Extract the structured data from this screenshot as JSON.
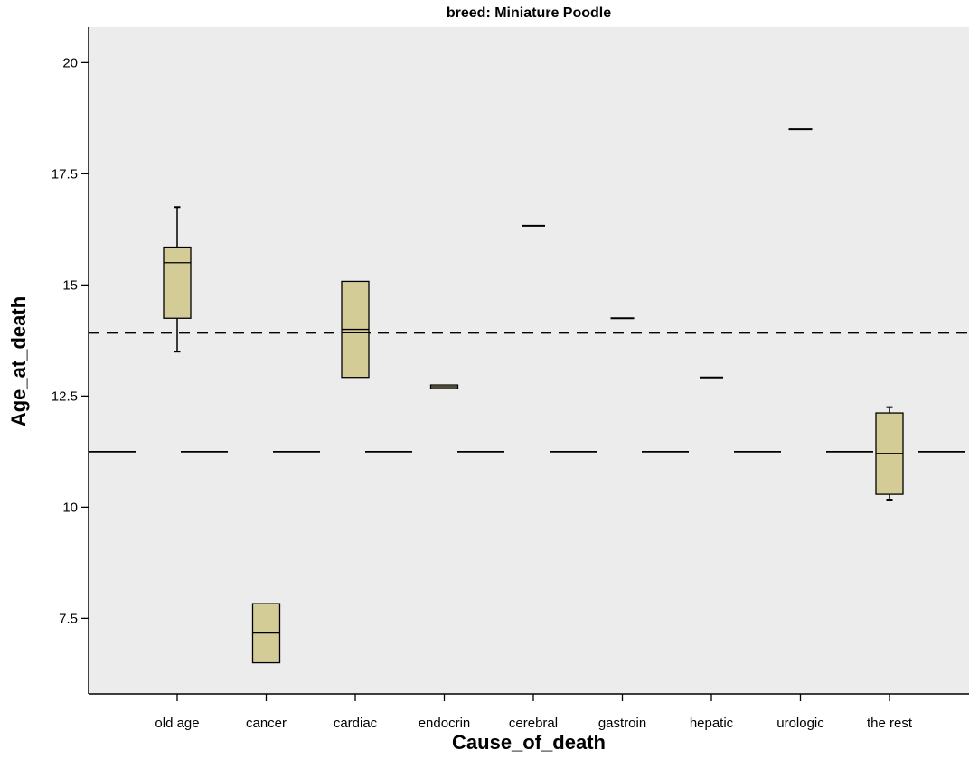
{
  "chart_data": {
    "type": "boxplot",
    "title": "breed: Miniature Poodle",
    "xlabel": "Cause_of_death",
    "ylabel": "Age_at_death",
    "ylim": [
      5.8,
      20.8
    ],
    "yticks": [
      7.5,
      10,
      12.5,
      15,
      17.5,
      20
    ],
    "ytick_labels": [
      "7.5",
      "10",
      "12.5",
      "15",
      "17.5",
      "20"
    ],
    "categories": [
      "old age",
      "cancer",
      "cardiac",
      "endocrin",
      "cerebral",
      "gastroin",
      "hepatic",
      "urologic",
      "the rest"
    ],
    "boxes": [
      {
        "category": "old age",
        "whisker_low": 13.5,
        "q1": 14.25,
        "median": 15.5,
        "q3": 15.85,
        "whisker_high": 16.75
      },
      {
        "category": "cancer",
        "whisker_low": 6.5,
        "q1": 6.5,
        "median": 7.17,
        "q3": 7.83,
        "whisker_high": 7.83
      },
      {
        "category": "cardiac",
        "whisker_low": 12.92,
        "q1": 12.92,
        "median": 14.0,
        "q3": 15.08,
        "whisker_high": 15.08,
        "extra_lines": [
          13.92
        ]
      },
      {
        "category": "endocrin",
        "whisker_low": 12.67,
        "q1": 12.67,
        "median": 12.71,
        "q3": 12.75,
        "whisker_high": 12.75
      },
      {
        "category": "cerebral",
        "whisker_low": 16.33,
        "q1": 16.33,
        "median": 16.33,
        "q3": 16.33,
        "whisker_high": 16.33
      },
      {
        "category": "gastroin",
        "whisker_low": 14.25,
        "q1": 14.25,
        "median": 14.25,
        "q3": 14.25,
        "whisker_high": 14.25
      },
      {
        "category": "hepatic",
        "whisker_low": 12.92,
        "q1": 12.92,
        "median": 12.92,
        "q3": 12.92,
        "whisker_high": 12.92
      },
      {
        "category": "urologic",
        "whisker_low": 18.5,
        "q1": 18.5,
        "median": 18.5,
        "q3": 18.5,
        "whisker_high": 18.5
      },
      {
        "category": "the rest",
        "whisker_low": 10.17,
        "q1": 10.29,
        "median": 11.21,
        "q3": 12.12,
        "whisker_high": 12.25
      }
    ],
    "reference_lines": [
      {
        "y": 13.92,
        "style": "short-dash"
      },
      {
        "y": 11.25,
        "style": "long-dash"
      }
    ],
    "box_fill": "#d4cc96",
    "plot_background": "#ececec",
    "grid": false,
    "legend": "none"
  }
}
